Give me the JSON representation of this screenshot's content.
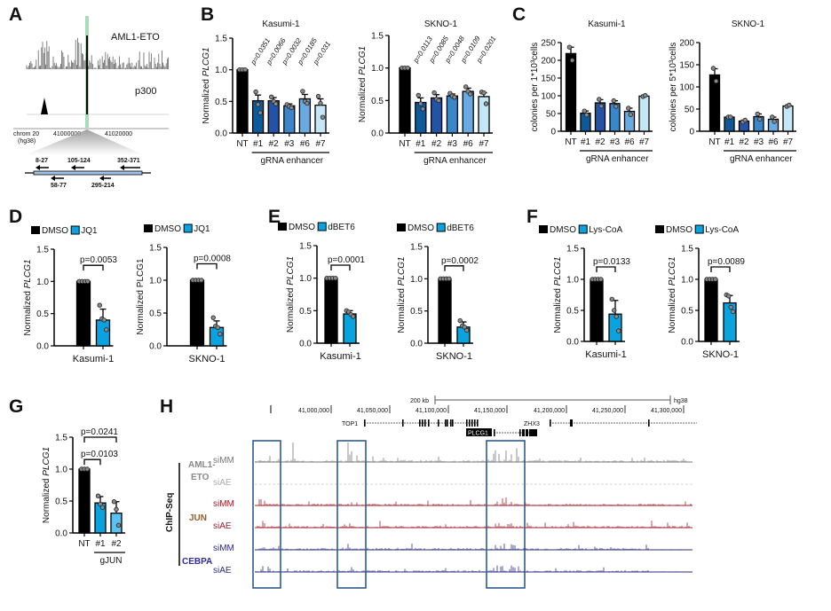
{
  "panel_letters": [
    "A",
    "B",
    "C",
    "D",
    "E",
    "F",
    "G",
    "H"
  ],
  "colors": {
    "control": "#000000",
    "treatment": "#0aa3e0",
    "gRNA": [
      "#0d5a9a",
      "#2452a4",
      "#3b86c8",
      "#6aaae0",
      "#c4e6f5"
    ],
    "gJUN": [
      "#0aa3e0",
      "#5bc1f0"
    ],
    "aml1eto_track": "#777777",
    "jun_track": "#a01b2a",
    "cebpa_track": "#2b2c7e",
    "highlight_box": "#2f5b8a",
    "p300_highlight": "#8fd4a8"
  },
  "panel_a": {
    "tracks": [
      "AML1-ETO",
      "p300"
    ],
    "chrom": "chrom 20",
    "assembly": "(hg38)",
    "coords": [
      "41000000",
      "41020000"
    ],
    "primers_top": [
      "8-27",
      "105-124",
      "352-371"
    ],
    "primers_bottom": [
      "58-77",
      "295-214"
    ]
  },
  "panel_h": {
    "scale_label": "200 kb",
    "assembly": "hg38",
    "coords": [
      "41,000,000",
      "41,050,000",
      "41,100,000",
      "41,150,000",
      "41,200,000",
      "41,250,000",
      "41,300,000"
    ],
    "genes": [
      "TOP1",
      "PLCG1",
      "ZHX3"
    ],
    "assay": "ChIP-Seq",
    "factors": [
      {
        "name": "AML1-",
        "name2": "ETO",
        "color": "#888888"
      },
      {
        "name": "JUN",
        "color": "#9a5a2a"
      },
      {
        "name": "CEBPA",
        "color": "#2b2c9e"
      }
    ],
    "tracks": [
      {
        "label": "siMM",
        "factor": "AML1-ETO",
        "color": "#777777"
      },
      {
        "label": "siAE",
        "factor": "AML1-ETO",
        "color": "#aaaaaa"
      },
      {
        "label": "siMM",
        "factor": "JUN",
        "color": "#a01b2a"
      },
      {
        "label": "siAE",
        "factor": "JUN",
        "color": "#a01b2a"
      },
      {
        "label": "siMM",
        "factor": "CEBPA",
        "color": "#2b2c7e"
      },
      {
        "label": "siAE",
        "factor": "CEBPA",
        "color": "#2b2c7e"
      }
    ]
  },
  "chart_data": [
    {
      "id": "B1",
      "panel": "B",
      "type": "bar",
      "title": "Kasumi-1",
      "ylabel": "Normalized",
      "ylabel_gene": "PLCG1",
      "ylim": [
        0,
        1.5
      ],
      "yticks": [
        0.0,
        0.5,
        1.0,
        1.5
      ],
      "ytick_labels": [
        "0.0",
        "0.5",
        "1.0",
        "1.5"
      ],
      "categories": [
        "NT",
        "#1",
        "#2",
        "#3",
        "#6",
        "#7"
      ],
      "group_label": "gRNA enhancer",
      "values": [
        1.0,
        0.51,
        0.51,
        0.43,
        0.54,
        0.44
      ],
      "errors": [
        0,
        0.09,
        0.05,
        0.03,
        0.07,
        0.1
      ],
      "points": [
        [
          1,
          1,
          1
        ],
        [
          0.65,
          0.45,
          0.32
        ],
        [
          0.57,
          0.5,
          0.46
        ],
        [
          0.45,
          0.42,
          0.4
        ],
        [
          0.66,
          0.5,
          0.47
        ],
        [
          0.58,
          0.47,
          0.25
        ]
      ],
      "pvalues": [
        "p=0.0351",
        "p=0.0066",
        "p=0.0032",
        "p=0.0185",
        "p=0.031"
      ]
    },
    {
      "id": "B2",
      "panel": "B",
      "type": "bar",
      "title": "SKNO-1",
      "ylabel": "Normalized",
      "ylabel_gene": "PLCG1",
      "ylim": [
        0,
        1.5
      ],
      "yticks": [
        0.0,
        0.5,
        1.0,
        1.5
      ],
      "ytick_labels": [
        "0.0",
        "0.5",
        "1.0",
        "1.5"
      ],
      "categories": [
        "NT",
        "#1",
        "#2",
        "#3",
        "#6",
        "#7"
      ],
      "group_label": "gRNA enhancer",
      "values": [
        1.0,
        0.47,
        0.54,
        0.57,
        0.64,
        0.56
      ],
      "errors": [
        0,
        0.07,
        0.05,
        0.03,
        0.05,
        0.06
      ],
      "points": [
        [
          1,
          1,
          1
        ],
        [
          0.58,
          0.45,
          0.37
        ],
        [
          0.62,
          0.52,
          0.5
        ],
        [
          0.61,
          0.57,
          0.55
        ],
        [
          0.71,
          0.64,
          0.6
        ],
        [
          0.63,
          0.62,
          0.45
        ]
      ],
      "pvalues": [
        "p=0.0113",
        "p=0.0085",
        "p=0.0048",
        "p=0.0109",
        "p=0.0201"
      ]
    },
    {
      "id": "C1",
      "panel": "C",
      "type": "bar",
      "title": "Kasumi-1",
      "ylabel": "colonies per 1*10³cells",
      "ylim": [
        0,
        250
      ],
      "yticks": [
        0,
        50,
        100,
        150,
        200,
        250
      ],
      "ytick_labels": [
        "0",
        "50",
        "100",
        "150",
        "200",
        "250"
      ],
      "categories": [
        "NT",
        "#1",
        "#2",
        "#3",
        "#6",
        "#7"
      ],
      "group_label": "gRNA enhancer",
      "values": [
        219,
        51,
        80,
        78,
        56,
        99
      ],
      "errors": [
        18,
        6,
        9,
        8,
        9,
        2
      ],
      "points": [
        [
          237,
          200
        ],
        [
          57,
          46
        ],
        [
          90,
          71
        ],
        [
          86,
          70
        ],
        [
          65,
          47
        ],
        [
          98,
          101
        ]
      ]
    },
    {
      "id": "C2",
      "panel": "C",
      "type": "bar",
      "title": "SKNO-1",
      "ylabel": "colonies per 5*10³cells",
      "ylim": [
        0,
        200
      ],
      "yticks": [
        0,
        50,
        100,
        150,
        200
      ],
      "ytick_labels": [
        "0",
        "50",
        "100",
        "150",
        "200"
      ],
      "categories": [
        "NT",
        "#1",
        "#2",
        "#3",
        "#6",
        "#7"
      ],
      "group_label": "gRNA enhancer",
      "values": [
        127,
        32,
        23,
        33,
        27,
        57
      ],
      "errors": [
        14,
        1,
        2,
        6,
        5,
        2
      ],
      "points": [
        [
          142,
          113
        ],
        [
          32,
          32
        ],
        [
          21,
          25
        ],
        [
          39,
          27
        ],
        [
          32,
          22
        ],
        [
          56,
          59
        ]
      ]
    },
    {
      "id": "D1",
      "panel": "D",
      "type": "bar",
      "xlabel": "Kasumi-1",
      "ylabel": "Normalized",
      "ylabel_gene": "PLCG1",
      "ylim": [
        0,
        1.5
      ],
      "yticks": [
        0.0,
        0.5,
        1.0,
        1.5
      ],
      "ytick_labels": [
        "0.0",
        "0.5",
        "1.0",
        "1.5"
      ],
      "legend": [
        "DMSO",
        "JQ1"
      ],
      "values": [
        1.0,
        0.4
      ],
      "errors": [
        0,
        0.17
      ],
      "points": [
        [
          1,
          1,
          1,
          1
        ],
        [
          0.63,
          0.42,
          0.4,
          0.25
        ]
      ],
      "brackets": [
        {
          "from": 0,
          "to": 1,
          "y": 1.25,
          "label": "p=0.0053"
        }
      ]
    },
    {
      "id": "D2",
      "panel": "D",
      "type": "bar",
      "xlabel": "SKNO-1",
      "ylabel": "Normalized PLCG1",
      "ylim": [
        0,
        1.5
      ],
      "yticks": [
        0.0,
        0.5,
        1.0,
        1.5
      ],
      "ytick_labels": [
        "0.0",
        "0.5",
        "1.0",
        "1.5"
      ],
      "legend": [
        "DMSO",
        "JQ1"
      ],
      "values": [
        1.0,
        0.28
      ],
      "errors": [
        0,
        0.1
      ],
      "points": [
        [
          1,
          1,
          1,
          1
        ],
        [
          0.43,
          0.3,
          0.28,
          0.18
        ]
      ],
      "brackets": [
        {
          "from": 0,
          "to": 1,
          "y": 1.25,
          "label": "p=0.0008"
        }
      ]
    },
    {
      "id": "E1",
      "panel": "E",
      "type": "bar",
      "xlabel": "Kasumi-1",
      "ylabel": "Normalized",
      "ylabel_gene": "PLCG1",
      "ylim": [
        0,
        1.5
      ],
      "yticks": [
        0.0,
        0.5,
        1.0,
        1.5
      ],
      "ytick_labels": [
        "0.0",
        "0.5",
        "1.0",
        "1.5"
      ],
      "legend": [
        "DMSO",
        "dBET6"
      ],
      "values": [
        1.0,
        0.45
      ],
      "errors": [
        0,
        0.05
      ],
      "points": [
        [
          1,
          1,
          1,
          1
        ],
        [
          0.5,
          0.48,
          0.44,
          0.41
        ]
      ],
      "brackets": [
        {
          "from": 0,
          "to": 1,
          "y": 1.2,
          "label": "p=0.0001"
        }
      ]
    },
    {
      "id": "E2",
      "panel": "E",
      "type": "bar",
      "xlabel": "SKNO-1",
      "ylabel": "Normalized",
      "ylabel_gene": "PLCG1",
      "ylim": [
        0,
        1.5
      ],
      "yticks": [
        0.0,
        0.5,
        1.0,
        1.5
      ],
      "ytick_labels": [
        "0.0",
        "0.5",
        "1.0",
        "1.5"
      ],
      "legend": [
        "DMSO",
        "dBET6"
      ],
      "values": [
        1.0,
        0.25
      ],
      "errors": [
        0,
        0.08
      ],
      "points": [
        [
          1,
          1,
          1,
          1
        ],
        [
          0.35,
          0.27,
          0.25,
          0.2
        ]
      ],
      "brackets": [
        {
          "from": 0,
          "to": 1,
          "y": 1.2,
          "label": "p=0.0002"
        }
      ]
    },
    {
      "id": "F1",
      "panel": "F",
      "type": "bar",
      "xlabel": "Kasumi-1",
      "ylabel": "Normalized",
      "ylabel_gene": "PLCG1",
      "ylim": [
        0,
        1.5
      ],
      "yticks": [
        0.0,
        0.5,
        1.0,
        1.5
      ],
      "ytick_labels": [
        "0.0",
        "0.5",
        "1.0",
        "1.5"
      ],
      "legend": [
        "DMSO",
        "Lys-CoA"
      ],
      "values": [
        1.0,
        0.44
      ],
      "errors": [
        0,
        0.22
      ],
      "points": [
        [
          1,
          1,
          1,
          1
        ],
        [
          0.68,
          0.5,
          0.4,
          0.17
        ]
      ],
      "brackets": [
        {
          "from": 0,
          "to": 1,
          "y": 1.2,
          "label": "p=0.0133"
        }
      ]
    },
    {
      "id": "F2",
      "panel": "F",
      "type": "bar",
      "xlabel": "SKNO-1",
      "ylabel": "Normalized",
      "ylabel_gene": "PLCG1",
      "ylim": [
        0,
        1.5
      ],
      "yticks": [
        0.0,
        0.5,
        1.0,
        1.5
      ],
      "ytick_labels": [
        "0.0",
        "0.5",
        "1.0",
        "1.5"
      ],
      "legend": [
        "DMSO",
        "Lys-CoA"
      ],
      "values": [
        1.0,
        0.62
      ],
      "errors": [
        0,
        0.12
      ],
      "points": [
        [
          1,
          1,
          1,
          1
        ],
        [
          0.75,
          0.73,
          0.55,
          0.48
        ]
      ],
      "brackets": [
        {
          "from": 0,
          "to": 1,
          "y": 1.2,
          "label": "p=0.0089"
        }
      ]
    },
    {
      "id": "G",
      "panel": "G",
      "type": "bar",
      "ylabel": "Normalized",
      "ylabel_gene": "PLCG1",
      "ylim": [
        0,
        1.5
      ],
      "yticks": [
        0.0,
        0.5,
        1.0,
        1.5
      ],
      "ytick_labels": [
        "0.0",
        "0.5",
        "1.0",
        "1.5"
      ],
      "categories": [
        "NT",
        "#1",
        "#2"
      ],
      "group_label": "gJUN",
      "values": [
        1.0,
        0.47,
        0.31
      ],
      "errors": [
        0,
        0.1,
        0.18
      ],
      "points": [
        [
          1,
          1,
          1
        ],
        [
          0.58,
          0.45,
          0.4
        ],
        [
          0.49,
          0.37,
          0.12
        ]
      ],
      "brackets": [
        {
          "from": 0,
          "to": 1,
          "y": 1.15,
          "label": "p=0.0103"
        },
        {
          "from": 0,
          "to": 2,
          "y": 1.5,
          "label": "p=0.0241"
        }
      ]
    }
  ]
}
